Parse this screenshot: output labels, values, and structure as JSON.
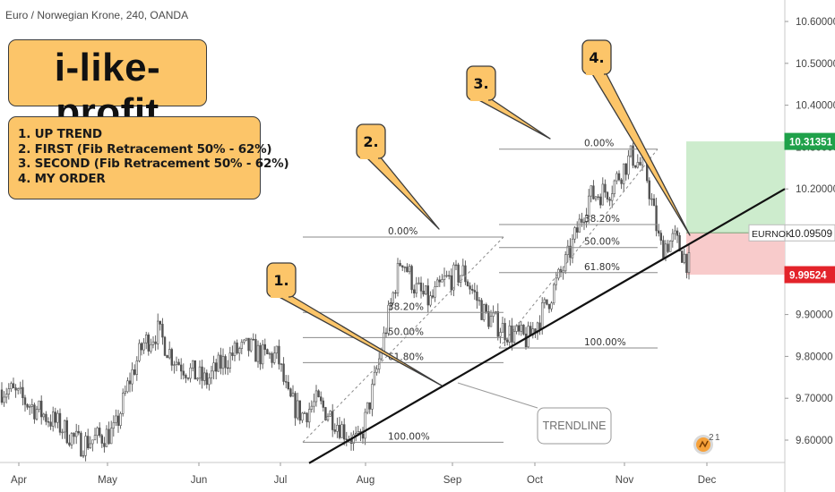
{
  "header": {
    "title": "Euro / Norwegian Krone, 240, OANDA"
  },
  "brand": {
    "label": "i-like-profit"
  },
  "steps": [
    "1. UP TREND",
    "2. FIRST (Fib Retracement 50% - 62%)",
    "3. SECOND (Fib Retracement 50% - 62%)",
    "4. MY ORDER"
  ],
  "colors": {
    "up_candle": "#525252",
    "callout_fill": "#fcc569",
    "callout_border": "#3b3b3b",
    "target_zone": "#cdeccd",
    "stop_zone": "#f8cbcb",
    "target_badge": "#1fa14a",
    "stop_badge": "#e3232a",
    "symbol_badge": "#ffffff"
  },
  "callouts": [
    {
      "label": "1."
    },
    {
      "label": "2."
    },
    {
      "label": "3."
    },
    {
      "label": "4."
    }
  ],
  "trendline_label": "TRENDLINE",
  "watermark_icon": "tradingview-logo-icon",
  "chart_data": {
    "type": "line",
    "title": "Euro / Norwegian Krone, 240, OANDA",
    "symbol": "EURNOK",
    "x_categories": [
      "Apr",
      "May",
      "Jun",
      "Jul",
      "Aug",
      "Sep",
      "Oct",
      "Nov",
      "Dec"
    ],
    "y_axis": {
      "ticks": [
        9.6,
        9.7,
        9.8,
        9.9,
        10.0,
        10.1,
        10.2,
        10.3,
        10.4,
        10.5,
        10.6
      ],
      "tick_labels": [
        "9.60000",
        "9.70000",
        "9.80000",
        "9.90000",
        "10.00000",
        "10.10000",
        "10.20000",
        "10.30000",
        "10.40000",
        "10.50000",
        "10.60000"
      ],
      "ylim": [
        9.545,
        10.655
      ],
      "position": "right"
    },
    "series": [
      {
        "values": [
          [
            "Apr",
            9.72
          ],
          [
            "Apr",
            9.69
          ],
          [
            "Apr",
            9.66
          ],
          [
            "Apr",
            9.63
          ],
          [
            "Apr",
            9.59
          ],
          [
            "May",
            9.62
          ],
          [
            "May",
            9.74
          ],
          [
            "May",
            9.83
          ],
          [
            "May",
            9.86
          ],
          [
            "May",
            9.8
          ],
          [
            "May",
            9.77
          ],
          [
            "Jun",
            9.74
          ],
          [
            "Jun",
            9.78
          ],
          [
            "Jun",
            9.81
          ],
          [
            "Jun",
            9.82
          ],
          [
            "Jun",
            9.8
          ],
          [
            "Jun",
            9.8
          ],
          [
            "Jul",
            9.7
          ],
          [
            "Jul",
            9.66
          ],
          [
            "Jul",
            9.69
          ],
          [
            "Jul",
            9.66
          ],
          [
            "Jul",
            9.62
          ],
          [
            "Jul",
            9.59
          ],
          [
            "Aug",
            9.72
          ],
          [
            "Aug",
            9.88
          ],
          [
            "Aug",
            10.04
          ],
          [
            "Aug",
            9.96
          ],
          [
            "Aug",
            9.93
          ],
          [
            "Aug",
            9.98
          ],
          [
            "Sep",
            10.0
          ],
          [
            "Sep",
            9.9
          ],
          [
            "Sep",
            9.86
          ],
          [
            "Sep",
            9.84
          ],
          [
            "Oct",
            9.92
          ],
          [
            "Oct",
            10.03
          ],
          [
            "Oct",
            10.18
          ],
          [
            "Oct",
            10.2
          ],
          [
            "Nov",
            10.28
          ],
          [
            "Nov",
            10.24
          ],
          [
            "Nov",
            10.06
          ],
          [
            "Nov",
            10.08
          ],
          [
            "Nov",
            10.02
          ],
          [
            "Nov",
            10.08
          ]
        ]
      }
    ],
    "annotations": {
      "fib_retracement_1": {
        "levels": [
          [
            "0.00%",
            10.085
          ],
          [
            "38.20%",
            9.905
          ],
          [
            "50.00%",
            9.845
          ],
          [
            "61.80%",
            9.785
          ],
          [
            "100.00%",
            9.595
          ]
        ]
      },
      "fib_retracement_2": {
        "levels": [
          [
            "0.00%",
            10.295
          ],
          [
            "38.20%",
            10.115
          ],
          [
            "50.00%",
            10.06
          ],
          [
            "61.80%",
            10.0
          ],
          [
            "100.00%",
            9.82
          ]
        ]
      },
      "trendline": {
        "from": [
          "Jul",
          9.545
        ],
        "to": [
          "Dec",
          10.2
        ],
        "label": "TRENDLINE"
      },
      "position": {
        "entry": 10.09509,
        "target": 10.31351,
        "stop": 9.99524
      },
      "price_labels": {
        "target": "10.31351",
        "last": "10.09509",
        "stop": "9.99524",
        "symbol": "EURNOK"
      }
    },
    "grid": false,
    "legend": "none"
  }
}
